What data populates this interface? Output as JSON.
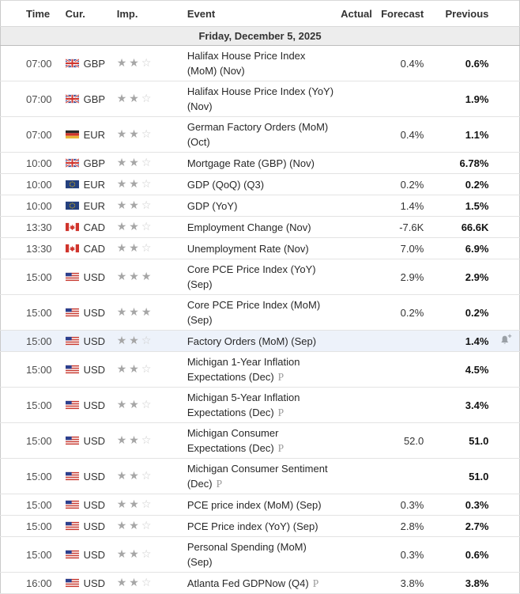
{
  "table": {
    "columns": {
      "time": "Time",
      "cur": "Cur.",
      "imp": "Imp.",
      "event": "Event",
      "actual": "Actual",
      "forecast": "Forecast",
      "previous": "Previous"
    },
    "date_header": "Friday, December 5, 2025",
    "rows": [
      {
        "time": "07:00",
        "flag": "gb",
        "currency": "GBP",
        "importance": 2,
        "event": "Halifax House Price Index (MoM) (Nov)",
        "marker": null,
        "actual": "",
        "forecast": "0.4%",
        "previous": "0.6%",
        "highlighted": false,
        "alert": false
      },
      {
        "time": "07:00",
        "flag": "gb",
        "currency": "GBP",
        "importance": 2,
        "event": "Halifax House Price Index (YoY) (Nov)",
        "marker": null,
        "actual": "",
        "forecast": "",
        "previous": "1.9%",
        "highlighted": false,
        "alert": false
      },
      {
        "time": "07:00",
        "flag": "de",
        "currency": "EUR",
        "importance": 2,
        "event": "German Factory Orders (MoM) (Oct)",
        "marker": null,
        "actual": "",
        "forecast": "0.4%",
        "previous": "1.1%",
        "highlighted": false,
        "alert": false
      },
      {
        "time": "10:00",
        "flag": "gb",
        "currency": "GBP",
        "importance": 2,
        "event": "Mortgage Rate (GBP) (Nov)",
        "marker": null,
        "actual": "",
        "forecast": "",
        "previous": "6.78%",
        "highlighted": false,
        "alert": false
      },
      {
        "time": "10:00",
        "flag": "eu",
        "currency": "EUR",
        "importance": 2,
        "event": "GDP (QoQ) (Q3)",
        "marker": null,
        "actual": "",
        "forecast": "0.2%",
        "previous": "0.2%",
        "highlighted": false,
        "alert": false
      },
      {
        "time": "10:00",
        "flag": "eu",
        "currency": "EUR",
        "importance": 2,
        "event": "GDP (YoY)",
        "marker": null,
        "actual": "",
        "forecast": "1.4%",
        "previous": "1.5%",
        "highlighted": false,
        "alert": false
      },
      {
        "time": "13:30",
        "flag": "ca",
        "currency": "CAD",
        "importance": 2,
        "event": "Employment Change (Nov)",
        "marker": null,
        "actual": "",
        "forecast": "-7.6K",
        "previous": "66.6K",
        "highlighted": false,
        "alert": false
      },
      {
        "time": "13:30",
        "flag": "ca",
        "currency": "CAD",
        "importance": 2,
        "event": "Unemployment Rate (Nov)",
        "marker": null,
        "actual": "",
        "forecast": "7.0%",
        "previous": "6.9%",
        "highlighted": false,
        "alert": false
      },
      {
        "time": "15:00",
        "flag": "us",
        "currency": "USD",
        "importance": 3,
        "event": "Core PCE Price Index (YoY) (Sep)",
        "marker": null,
        "actual": "",
        "forecast": "2.9%",
        "previous": "2.9%",
        "highlighted": false,
        "alert": false
      },
      {
        "time": "15:00",
        "flag": "us",
        "currency": "USD",
        "importance": 3,
        "event": "Core PCE Price Index (MoM) (Sep)",
        "marker": null,
        "actual": "",
        "forecast": "0.2%",
        "previous": "0.2%",
        "highlighted": false,
        "alert": false
      },
      {
        "time": "15:00",
        "flag": "us",
        "currency": "USD",
        "importance": 2,
        "event": "Factory Orders (MoM) (Sep)",
        "marker": null,
        "actual": "",
        "forecast": "",
        "previous": "1.4%",
        "highlighted": true,
        "alert": true
      },
      {
        "time": "15:00",
        "flag": "us",
        "currency": "USD",
        "importance": 2,
        "event": "Michigan 1-Year Inflation Expectations (Dec)",
        "marker": "P",
        "actual": "",
        "forecast": "",
        "previous": "4.5%",
        "highlighted": false,
        "alert": false
      },
      {
        "time": "15:00",
        "flag": "us",
        "currency": "USD",
        "importance": 2,
        "event": "Michigan 5-Year Inflation Expectations (Dec)",
        "marker": "P",
        "actual": "",
        "forecast": "",
        "previous": "3.4%",
        "highlighted": false,
        "alert": false
      },
      {
        "time": "15:00",
        "flag": "us",
        "currency": "USD",
        "importance": 2,
        "event": "Michigan Consumer Expectations (Dec)",
        "marker": "P",
        "actual": "",
        "forecast": "52.0",
        "previous": "51.0",
        "highlighted": false,
        "alert": false
      },
      {
        "time": "15:00",
        "flag": "us",
        "currency": "USD",
        "importance": 2,
        "event": "Michigan Consumer Sentiment (Dec)",
        "marker": "P",
        "actual": "",
        "forecast": "",
        "previous": "51.0",
        "highlighted": false,
        "alert": false
      },
      {
        "time": "15:00",
        "flag": "us",
        "currency": "USD",
        "importance": 2,
        "event": "PCE price index (MoM) (Sep)",
        "marker": null,
        "actual": "",
        "forecast": "0.3%",
        "previous": "0.3%",
        "highlighted": false,
        "alert": false
      },
      {
        "time": "15:00",
        "flag": "us",
        "currency": "USD",
        "importance": 2,
        "event": "PCE Price index (YoY) (Sep)",
        "marker": null,
        "actual": "",
        "forecast": "2.8%",
        "previous": "2.7%",
        "highlighted": false,
        "alert": false
      },
      {
        "time": "15:00",
        "flag": "us",
        "currency": "USD",
        "importance": 2,
        "event": "Personal Spending (MoM) (Sep)",
        "marker": null,
        "actual": "",
        "forecast": "0.3%",
        "previous": "0.6%",
        "highlighted": false,
        "alert": false
      },
      {
        "time": "16:00",
        "flag": "us",
        "currency": "USD",
        "importance": 2,
        "event": "Atlanta Fed GDPNow (Q4)",
        "marker": "P",
        "actual": "",
        "forecast": "3.8%",
        "previous": "3.8%",
        "highlighted": false,
        "alert": false
      }
    ]
  },
  "icons": {
    "star_filled_glyph": "★",
    "star_empty_glyph": "☆",
    "alert_bell": "bell-plus-icon",
    "preliminary_marker": "P"
  },
  "colors": {
    "highlight_row_bg": "#edf2fa",
    "star_filled": "#a6a6a6",
    "star_empty": "#cccccc",
    "previous_text": "#111111",
    "header_text": "#333333",
    "date_row_bg": "#ededed",
    "row_border": "#e3e3e3",
    "table_border": "#c9c9c9",
    "bell_icon": "#9aa0a6",
    "marker_text": "#9a9a9a",
    "time_text": "#4d4d4d",
    "event_text": "#282828",
    "forecast_text": "#333333"
  }
}
